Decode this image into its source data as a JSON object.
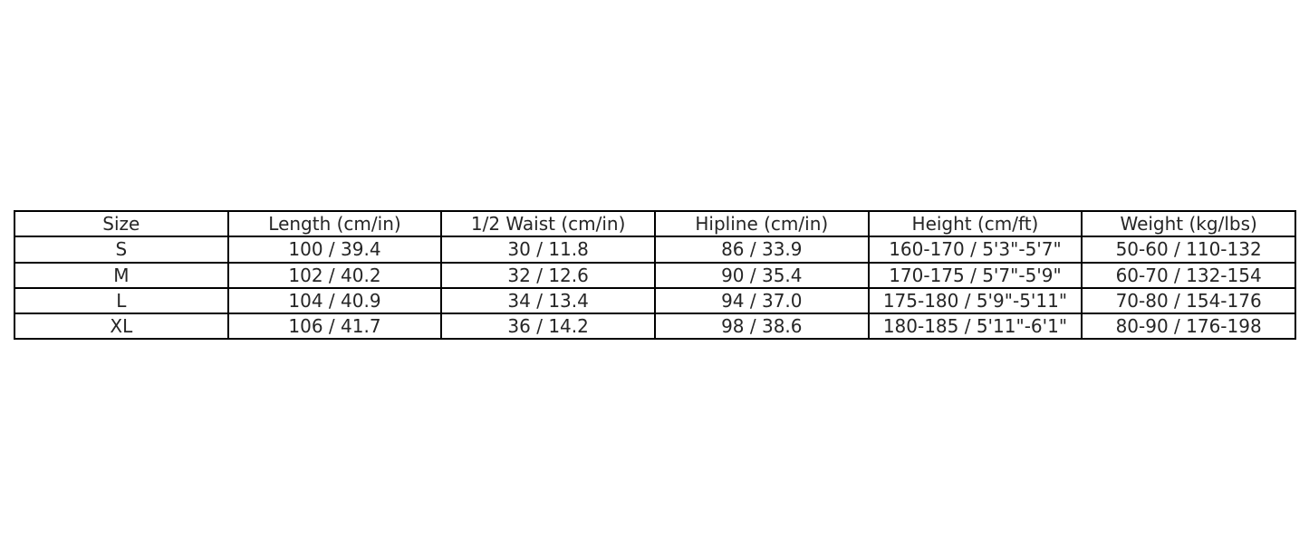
{
  "chart_data": {
    "type": "table",
    "columns": [
      "Size",
      "Length (cm/in)",
      "1/2 Waist (cm/in)",
      "Hipline (cm/in)",
      "Height (cm/ft)",
      "Weight (kg/lbs)"
    ],
    "rows": [
      [
        "S",
        "100 / 39.4",
        "30 / 11.8",
        "86 / 33.9",
        "160-170 / 5'3\"-5'7\"",
        "50-60 / 110-132"
      ],
      [
        "M",
        "102 / 40.2",
        "32 / 12.6",
        "90 / 35.4",
        "170-175 / 5'7\"-5'9\"",
        "60-70 / 132-154"
      ],
      [
        "L",
        "104 / 40.9",
        "34 / 13.4",
        "94 / 37.0",
        "175-180 / 5'9\"-5'11\"",
        "70-80 / 154-176"
      ],
      [
        "XL",
        "106 / 41.7",
        "36 / 14.2",
        "98 / 38.6",
        "180-185 / 5'11\"-6'1\"",
        "80-90 / 176-198"
      ]
    ]
  }
}
